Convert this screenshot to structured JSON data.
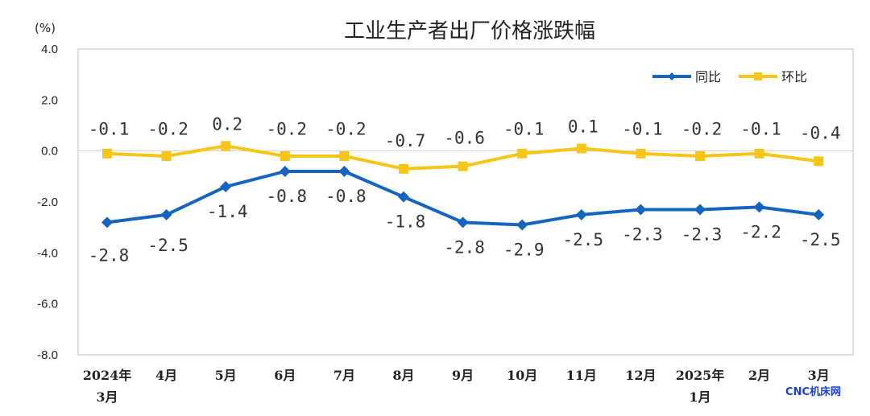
{
  "watermark": "CNC机床网",
  "colors": {
    "yoy": "#1565C0",
    "mom": "#F5C518",
    "axis": "#bdbdbd"
  },
  "chart_data": {
    "type": "line",
    "title": "工业生产者出厂价格涨跌幅",
    "unit_label": "(%)",
    "ylim": [
      -8,
      4
    ],
    "yticks": [
      "4.0",
      "2.0",
      "0.0",
      "-2.0",
      "-4.0",
      "-6.0",
      "-8.0"
    ],
    "categories": [
      [
        "2024年",
        "3月"
      ],
      [
        "4月"
      ],
      [
        "5月"
      ],
      [
        "6月"
      ],
      [
        "7月"
      ],
      [
        "8月"
      ],
      [
        "9月"
      ],
      [
        "10月"
      ],
      [
        "11月"
      ],
      [
        "12月"
      ],
      [
        "2025年",
        "1月"
      ],
      [
        "2月"
      ],
      [
        "3月"
      ]
    ],
    "legend_position": "top-right",
    "grid": false,
    "series": [
      {
        "name": "同比",
        "color": "#1565C0",
        "marker": "diamond",
        "values": [
          -2.8,
          -2.5,
          -1.4,
          -0.8,
          -0.8,
          -1.8,
          -2.8,
          -2.9,
          -2.5,
          -2.3,
          -2.3,
          -2.2,
          -2.5
        ],
        "labels": [
          "-2.8",
          "-2.5",
          "-1.4",
          "-0.8",
          "-0.8",
          "-1.8",
          "-2.8",
          "-2.9",
          "-2.5",
          "-2.3",
          "-2.3",
          "-2.2",
          "-2.5"
        ]
      },
      {
        "name": "环比",
        "color": "#F5C518",
        "marker": "square",
        "values": [
          -0.1,
          -0.2,
          0.2,
          -0.2,
          -0.2,
          -0.7,
          -0.6,
          -0.1,
          0.1,
          -0.1,
          -0.2,
          -0.1,
          -0.4
        ],
        "labels": [
          "-0.1",
          "-0.2",
          "0.2",
          "-0.2",
          "-0.2",
          "-0.7",
          "-0.6",
          "-0.1",
          "0.1",
          "-0.1",
          "-0.2",
          "-0.1",
          "-0.4"
        ]
      }
    ]
  }
}
